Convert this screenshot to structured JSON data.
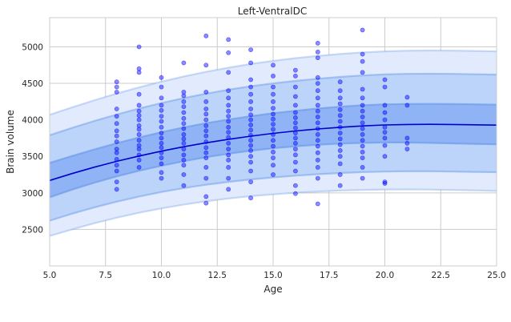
{
  "chart_data": {
    "type": "scatter",
    "title": "Left-VentralDC",
    "xlabel": "Age",
    "ylabel": "Brain volume",
    "xlim": [
      5,
      25
    ],
    "ylim": [
      2000,
      5400
    ],
    "x_ticks": [
      5.0,
      7.5,
      10.0,
      12.5,
      15.0,
      17.5,
      20.0,
      22.5,
      25.0
    ],
    "x_tick_labels": [
      "5.0",
      "7.5",
      "10.0",
      "12.5",
      "15.0",
      "17.5",
      "20.0",
      "22.5",
      "25.0"
    ],
    "y_ticks": [
      2500,
      3000,
      3500,
      4000,
      4500,
      5000
    ],
    "y_tick_labels": [
      "2500",
      "3000",
      "3500",
      "4000",
      "4500",
      "5000"
    ],
    "grid": true,
    "colors": {
      "points": "#0000ff",
      "median_line": "#0000cc",
      "band_inner": "#8fb3f5",
      "band_middle": "#bcd3fa",
      "band_outer": "#e1ebfd",
      "band_edge": "#6c9be8",
      "grid": "#cccccc",
      "frame": "#cccccc"
    },
    "percentile_curves": {
      "x": [
        5,
        6,
        7,
        8,
        9,
        10,
        11,
        12,
        13,
        14,
        15,
        16,
        17,
        18,
        19,
        20,
        21,
        22,
        23,
        24,
        25
      ],
      "p50": [
        3170,
        3265,
        3352,
        3432,
        3505,
        3572,
        3632,
        3686,
        3734,
        3777,
        3815,
        3848,
        3876,
        3899,
        3917,
        3930,
        3937,
        3939,
        3937,
        3933,
        3928
      ],
      "p25": [
        2940,
        3045,
        3140,
        3226,
        3303,
        3372,
        3434,
        3489,
        3537,
        3578,
        3612,
        3639,
        3660,
        3675,
        3685,
        3690,
        3690,
        3685,
        3678,
        3672,
        3665
      ],
      "p75": [
        3410,
        3505,
        3595,
        3680,
        3758,
        3830,
        3896,
        3954,
        4005,
        4050,
        4090,
        4125,
        4155,
        4180,
        4200,
        4212,
        4218,
        4219,
        4217,
        4213,
        4208
      ],
      "p05": [
        2620,
        2715,
        2802,
        2880,
        2950,
        3012,
        3066,
        3112,
        3151,
        3184,
        3212,
        3236,
        3256,
        3272,
        3284,
        3292,
        3296,
        3296,
        3292,
        3288,
        3283
      ],
      "p95": [
        3790,
        3890,
        3985,
        4073,
        4155,
        4230,
        4298,
        4359,
        4413,
        4460,
        4500,
        4534,
        4563,
        4588,
        4608,
        4622,
        4630,
        4632,
        4630,
        4625,
        4620
      ],
      "p01": [
        2410,
        2500,
        2585,
        2660,
        2728,
        2788,
        2840,
        2885,
        2923,
        2955,
        2981,
        3002,
        3019,
        3032,
        3041,
        3046,
        3047,
        3045,
        3040,
        3034,
        3027
      ],
      "p99": [
        4070,
        4170,
        4268,
        4360,
        4445,
        4523,
        4594,
        4658,
        4715,
        4765,
        4808,
        4845,
        4876,
        4902,
        4923,
        4938,
        4947,
        4950,
        4948,
        4944,
        4938
      ]
    },
    "points": [
      [
        8,
        3050
      ],
      [
        8,
        3150
      ],
      [
        8,
        3300
      ],
      [
        8,
        3380
      ],
      [
        8,
        3460
      ],
      [
        8,
        3550
      ],
      [
        8,
        3600
      ],
      [
        8,
        3700
      ],
      [
        8,
        3780
      ],
      [
        8,
        3850
      ],
      [
        8,
        3950
      ],
      [
        8,
        4050
      ],
      [
        8,
        4150
      ],
      [
        8,
        4380
      ],
      [
        8,
        4450
      ],
      [
        8,
        4520
      ],
      [
        9,
        3350
      ],
      [
        9,
        3450
      ],
      [
        9,
        3520
      ],
      [
        9,
        3600
      ],
      [
        9,
        3650
      ],
      [
        9,
        3720
      ],
      [
        9,
        3800
      ],
      [
        9,
        3870
      ],
      [
        9,
        3920
      ],
      [
        9,
        4000
      ],
      [
        9,
        4060
      ],
      [
        9,
        4120
      ],
      [
        9,
        4200
      ],
      [
        9,
        4350
      ],
      [
        9,
        4650
      ],
      [
        9,
        4700
      ],
      [
        9,
        5000
      ],
      [
        10,
        3200
      ],
      [
        10,
        3280
      ],
      [
        10,
        3400
      ],
      [
        10,
        3480
      ],
      [
        10,
        3550
      ],
      [
        10,
        3620
      ],
      [
        10,
        3680
      ],
      [
        10,
        3750
      ],
      [
        10,
        3820
      ],
      [
        10,
        3900
      ],
      [
        10,
        3980
      ],
      [
        10,
        4050
      ],
      [
        10,
        4130
      ],
      [
        10,
        4200
      ],
      [
        10,
        4300
      ],
      [
        10,
        4450
      ],
      [
        10,
        4580
      ],
      [
        11,
        3100
      ],
      [
        11,
        3250
      ],
      [
        11,
        3380
      ],
      [
        11,
        3450
      ],
      [
        11,
        3520
      ],
      [
        11,
        3600
      ],
      [
        11,
        3680
      ],
      [
        11,
        3740
      ],
      [
        11,
        3800
      ],
      [
        11,
        3880
      ],
      [
        11,
        3950
      ],
      [
        11,
        4020
      ],
      [
        11,
        4100
      ],
      [
        11,
        4180
      ],
      [
        11,
        4250
      ],
      [
        11,
        4330
      ],
      [
        11,
        4380
      ],
      [
        11,
        4780
      ],
      [
        12,
        2860
      ],
      [
        12,
        2950
      ],
      [
        12,
        3200
      ],
      [
        12,
        3350
      ],
      [
        12,
        3480
      ],
      [
        12,
        3550
      ],
      [
        12,
        3620
      ],
      [
        12,
        3700
      ],
      [
        12,
        3780
      ],
      [
        12,
        3850
      ],
      [
        12,
        3920
      ],
      [
        12,
        4000
      ],
      [
        12,
        4080
      ],
      [
        12,
        4150
      ],
      [
        12,
        4250
      ],
      [
        12,
        4380
      ],
      [
        12,
        4750
      ],
      [
        12,
        5150
      ],
      [
        13,
        3050
      ],
      [
        13,
        3200
      ],
      [
        13,
        3350
      ],
      [
        13,
        3450
      ],
      [
        13,
        3520
      ],
      [
        13,
        3600
      ],
      [
        13,
        3680
      ],
      [
        13,
        3760
      ],
      [
        13,
        3830
      ],
      [
        13,
        3900
      ],
      [
        13,
        3980
      ],
      [
        13,
        4050
      ],
      [
        13,
        4120
      ],
      [
        13,
        4200
      ],
      [
        13,
        4300
      ],
      [
        13,
        4400
      ],
      [
        13,
        4650
      ],
      [
        13,
        4920
      ],
      [
        13,
        5100
      ],
      [
        14,
        2930
      ],
      [
        14,
        3150
      ],
      [
        14,
        3300
      ],
      [
        14,
        3420
      ],
      [
        14,
        3500
      ],
      [
        14,
        3580
      ],
      [
        14,
        3650
      ],
      [
        14,
        3720
      ],
      [
        14,
        3790
      ],
      [
        14,
        3860
      ],
      [
        14,
        3930
      ],
      [
        14,
        4000
      ],
      [
        14,
        4070
      ],
      [
        14,
        4150
      ],
      [
        14,
        4250
      ],
      [
        14,
        4350
      ],
      [
        14,
        4450
      ],
      [
        14,
        4550
      ],
      [
        14,
        4780
      ],
      [
        14,
        4960
      ],
      [
        15,
        3250
      ],
      [
        15,
        3380
      ],
      [
        15,
        3480
      ],
      [
        15,
        3560
      ],
      [
        15,
        3640
      ],
      [
        15,
        3720
      ],
      [
        15,
        3800
      ],
      [
        15,
        3870
      ],
      [
        15,
        3940
      ],
      [
        15,
        4010
      ],
      [
        15,
        4080
      ],
      [
        15,
        4160
      ],
      [
        15,
        4250
      ],
      [
        15,
        4350
      ],
      [
        15,
        4450
      ],
      [
        15,
        4600
      ],
      [
        15,
        4750
      ],
      [
        16,
        2990
      ],
      [
        16,
        3100
      ],
      [
        16,
        3300
      ],
      [
        16,
        3420
      ],
      [
        16,
        3520
      ],
      [
        16,
        3600
      ],
      [
        16,
        3680
      ],
      [
        16,
        3750
      ],
      [
        16,
        3820
      ],
      [
        16,
        3890
      ],
      [
        16,
        3960
      ],
      [
        16,
        4030
      ],
      [
        16,
        4100
      ],
      [
        16,
        4200
      ],
      [
        16,
        4320
      ],
      [
        16,
        4450
      ],
      [
        16,
        4600
      ],
      [
        16,
        4680
      ],
      [
        17,
        2850
      ],
      [
        17,
        3200
      ],
      [
        17,
        3350
      ],
      [
        17,
        3450
      ],
      [
        17,
        3550
      ],
      [
        17,
        3640
      ],
      [
        17,
        3720
      ],
      [
        17,
        3800
      ],
      [
        17,
        3880
      ],
      [
        17,
        3960
      ],
      [
        17,
        4040
      ],
      [
        17,
        4120
      ],
      [
        17,
        4200
      ],
      [
        17,
        4300
      ],
      [
        17,
        4400
      ],
      [
        17,
        4500
      ],
      [
        17,
        4580
      ],
      [
        17,
        4850
      ],
      [
        17,
        4930
      ],
      [
        17,
        5050
      ],
      [
        18,
        3100
      ],
      [
        18,
        3250
      ],
      [
        18,
        3400
      ],
      [
        18,
        3500
      ],
      [
        18,
        3580
      ],
      [
        18,
        3660
      ],
      [
        18,
        3740
      ],
      [
        18,
        3820
      ],
      [
        18,
        3900
      ],
      [
        18,
        3980
      ],
      [
        18,
        4060
      ],
      [
        18,
        4140
      ],
      [
        18,
        4220
      ],
      [
        18,
        4300
      ],
      [
        18,
        4400
      ],
      [
        18,
        4520
      ],
      [
        19,
        3200
      ],
      [
        19,
        3350
      ],
      [
        19,
        3480
      ],
      [
        19,
        3560
      ],
      [
        19,
        3640
      ],
      [
        19,
        3720
      ],
      [
        19,
        3800
      ],
      [
        19,
        3880
      ],
      [
        19,
        3960
      ],
      [
        19,
        4040
      ],
      [
        19,
        4120
      ],
      [
        19,
        4200
      ],
      [
        19,
        4300
      ],
      [
        19,
        4420
      ],
      [
        19,
        4650
      ],
      [
        19,
        4800
      ],
      [
        19,
        4900
      ],
      [
        19,
        5230
      ],
      [
        20,
        3150
      ],
      [
        20,
        3130
      ],
      [
        20,
        3500
      ],
      [
        20,
        3650
      ],
      [
        20,
        3750
      ],
      [
        20,
        3830
      ],
      [
        20,
        3900
      ],
      [
        20,
        4000
      ],
      [
        20,
        4100
      ],
      [
        20,
        4200
      ],
      [
        20,
        4450
      ],
      [
        20,
        4550
      ],
      [
        21,
        3600
      ],
      [
        21,
        3680
      ],
      [
        21,
        3750
      ],
      [
        21,
        4200
      ],
      [
        21,
        4310
      ]
    ]
  }
}
